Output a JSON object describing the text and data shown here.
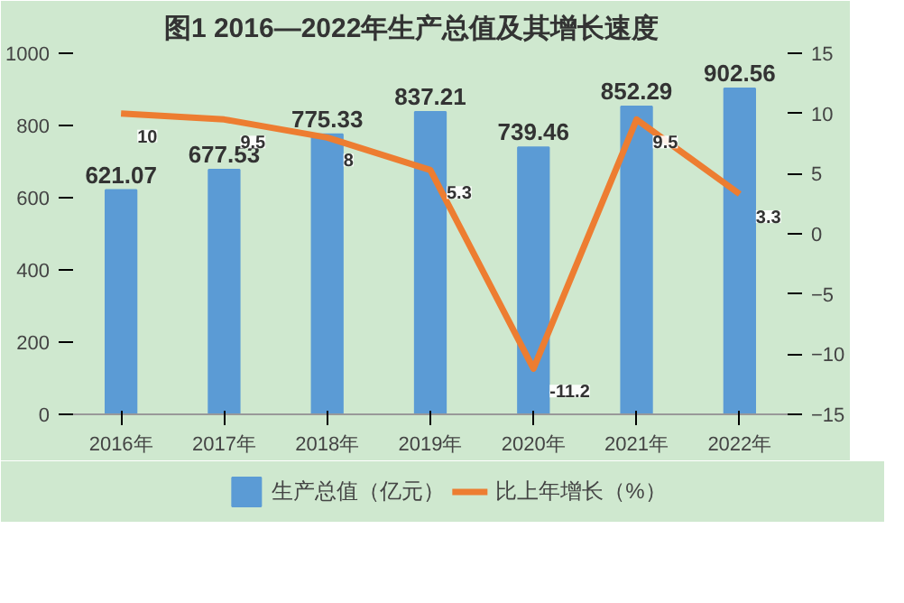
{
  "chart_data": {
    "type": "bar",
    "title": "图1      2016—2022年生产总值及其增长速度",
    "categories": [
      "2016年",
      "2017年",
      "2018年",
      "2019年",
      "2020年",
      "2021年",
      "2022年"
    ],
    "series": [
      {
        "name": "生产总值（亿元）",
        "color": "#5b9bd5",
        "values": [
          621.07,
          677.53,
          775.33,
          837.21,
          739.46,
          852.29,
          902.56
        ]
      },
      {
        "name": "比上年增长（%）",
        "type": "line",
        "axis": "y2",
        "color": "#ed7d31",
        "values": [
          10,
          9.5,
          8,
          5.3,
          -11.2,
          9.5,
          3.3
        ]
      }
    ],
    "ylim": [
      0,
      1000
    ],
    "yticks": [
      0,
      200,
      400,
      600,
      800,
      1000
    ],
    "y2lim": [
      -15,
      15
    ],
    "y2ticks": [
      -15,
      -10,
      -5,
      0,
      5,
      10,
      15
    ],
    "data_labels": true,
    "legend": "bottom",
    "grid": false,
    "marker": "none",
    "line_style": "solid"
  }
}
